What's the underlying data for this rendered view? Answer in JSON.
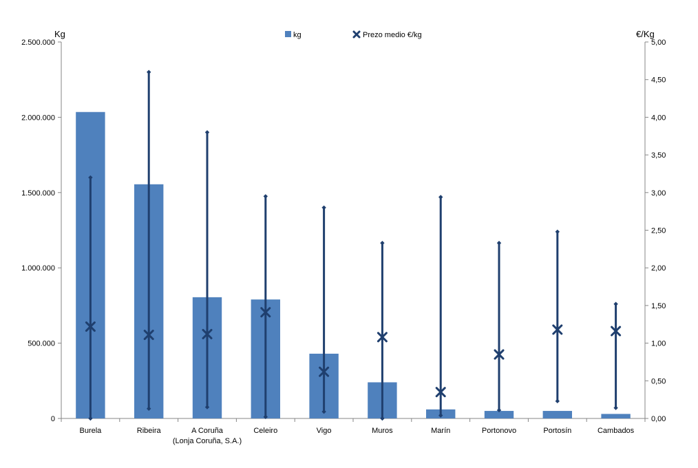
{
  "chart_data": {
    "type": "bar",
    "categories": [
      [
        "Burela"
      ],
      [
        "Ribeira"
      ],
      [
        "A Coruña",
        "(Lonja Coruña, S.A.)"
      ],
      [
        "Celeiro"
      ],
      [
        "Vigo"
      ],
      [
        "Muros"
      ],
      [
        "Marín"
      ],
      [
        "Portonovo"
      ],
      [
        "Portosín"
      ],
      [
        "Cambados"
      ]
    ],
    "series": [
      {
        "name": "kg",
        "axis": "left",
        "type": "bar",
        "color": "#4f81bd",
        "values": [
          2035000,
          1555000,
          805000,
          790000,
          430000,
          240000,
          60000,
          50000,
          50000,
          30000
        ]
      },
      {
        "name": "Prezo medio €/kg",
        "axis": "right",
        "type": "scatter",
        "marker": "x",
        "color": "#1f3f6e",
        "values": [
          1.22,
          1.11,
          1.12,
          1.41,
          0.62,
          1.08,
          0.35,
          0.85,
          1.18,
          1.16
        ],
        "min": [
          0.0,
          0.13,
          0.15,
          0.02,
          0.09,
          0.0,
          0.04,
          0.11,
          0.23,
          0.14
        ],
        "max": [
          3.2,
          4.6,
          3.8,
          2.95,
          2.8,
          2.33,
          2.94,
          2.33,
          2.48,
          1.52
        ]
      }
    ],
    "left_axis": {
      "label": "Kg",
      "min": 0,
      "max": 2500000,
      "ticks": [
        "2.500.000",
        "2.000.000",
        "1.500.000",
        "1.000.000",
        "500.000",
        "0"
      ],
      "tick_values": [
        2500000,
        2000000,
        1500000,
        1000000,
        500000,
        0
      ]
    },
    "right_axis": {
      "label": "€/Kg",
      "min": 0,
      "max": 5,
      "ticks": [
        "5,00",
        "4,50",
        "4,00",
        "3,50",
        "3,00",
        "2,50",
        "2,00",
        "1,50",
        "1,00",
        "0,50",
        "0,00"
      ],
      "tick_values": [
        5.0,
        4.5,
        4.0,
        3.5,
        3.0,
        2.5,
        2.0,
        1.5,
        1.0,
        0.5,
        0.0
      ]
    },
    "legend": {
      "position": "top-center",
      "items": [
        "kg",
        "Prezo medio €/kg"
      ]
    },
    "grid": false
  }
}
